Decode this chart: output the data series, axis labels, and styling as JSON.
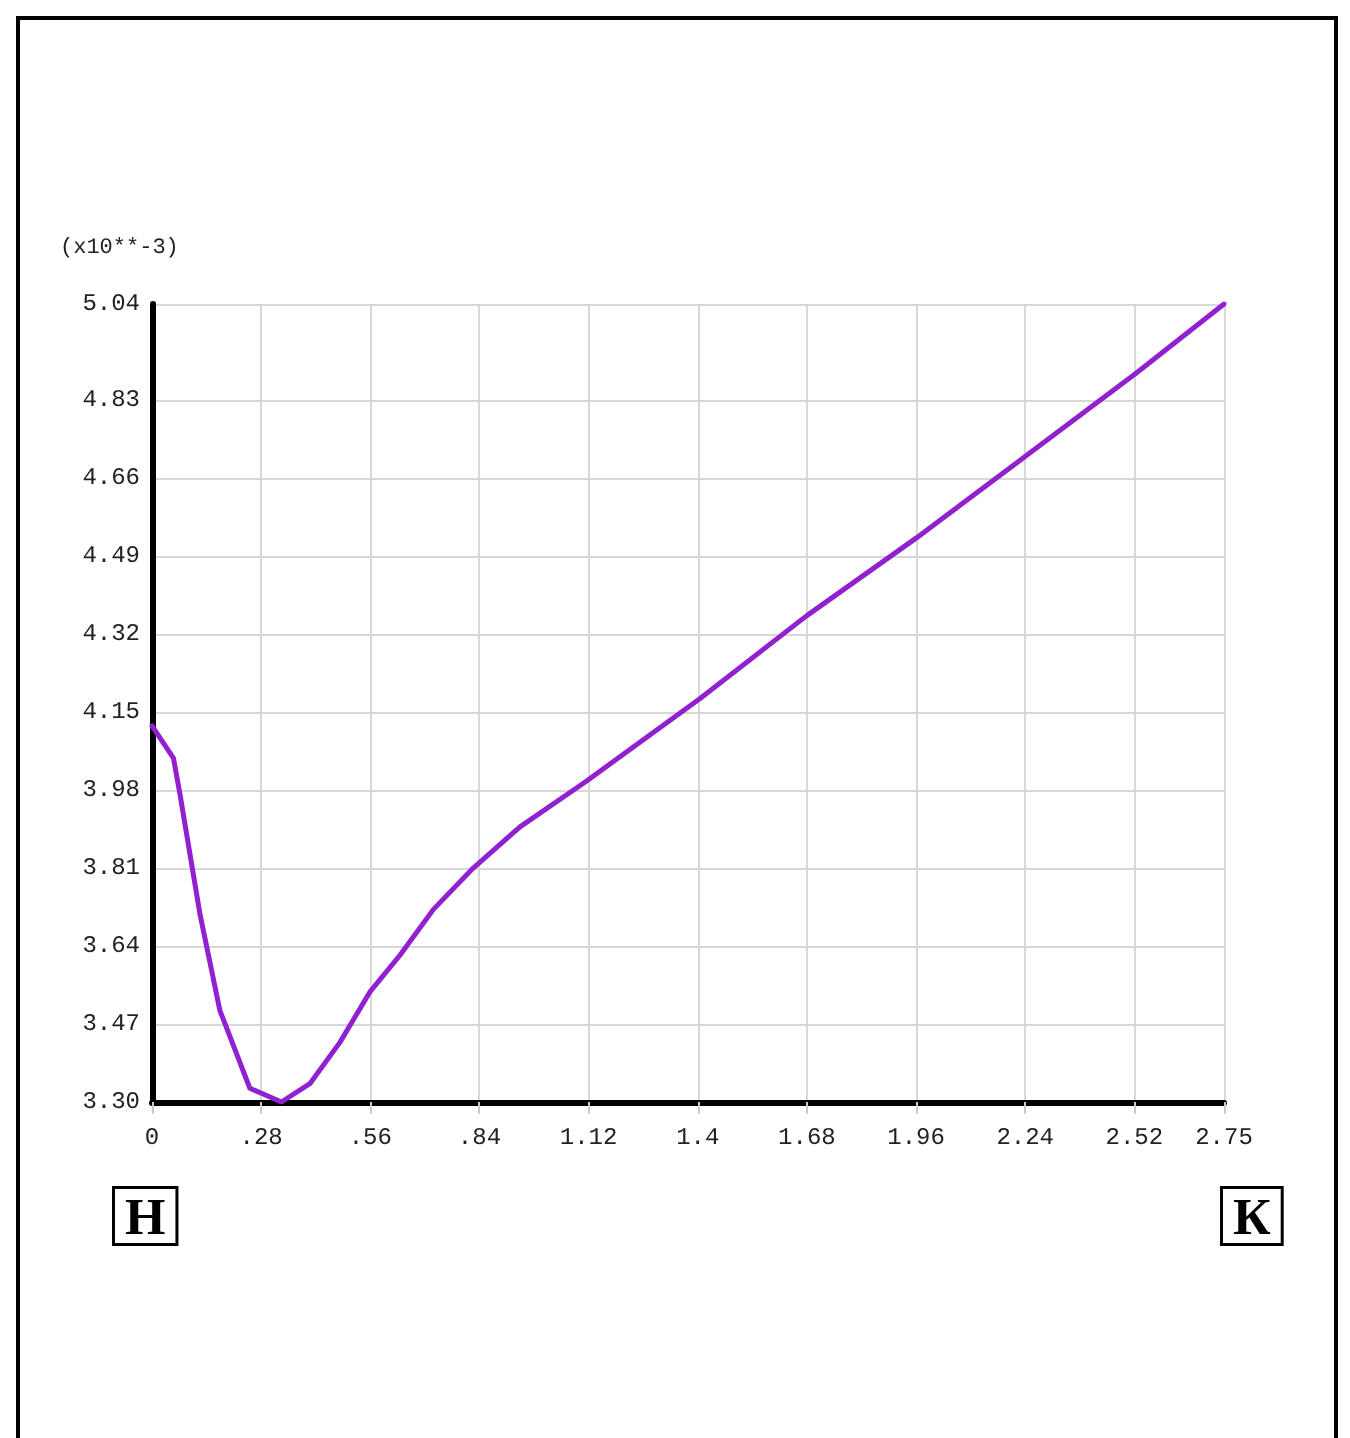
{
  "chart_data": {
    "type": "line",
    "ylabel": "(x10**-3)",
    "annotations": [
      "Н",
      "К"
    ],
    "x": [
      0,
      0.055,
      0.072,
      0.123,
      0.174,
      0.251,
      0.332,
      0.405,
      0.482,
      0.559,
      0.636,
      0.722,
      0.824,
      0.944,
      1.115,
      1.406,
      1.679,
      1.961,
      2.244,
      2.526,
      2.75
    ],
    "series": [
      {
        "color": "#9020d0",
        "values": [
          4.12,
          4.05,
          3.97,
          3.71,
          3.5,
          3.33,
          3.3,
          3.34,
          3.43,
          3.54,
          3.62,
          3.72,
          3.81,
          3.9,
          4.0,
          4.18,
          4.36,
          4.53,
          4.71,
          4.89,
          5.04
        ]
      }
    ],
    "xlim": [
      0,
      2.75
    ],
    "xticks": [
      0,
      {
        "value": 0.28,
        "label": ".28"
      },
      {
        "value": 0.56,
        "label": ".56"
      },
      {
        "value": 0.84,
        "label": ".84"
      },
      1.12,
      1.4,
      1.68,
      1.96,
      2.24,
      2.52,
      2.75
    ],
    "ylim": [
      3.3,
      5.04
    ],
    "yticks": [
      {
        "value": 3.3,
        "label": "3.30"
      },
      3.47,
      3.64,
      3.81,
      3.98,
      4.15,
      4.32,
      4.49,
      4.66,
      4.83,
      5.04
    ],
    "grid": true,
    "marker": "none",
    "line_style": "solid"
  }
}
